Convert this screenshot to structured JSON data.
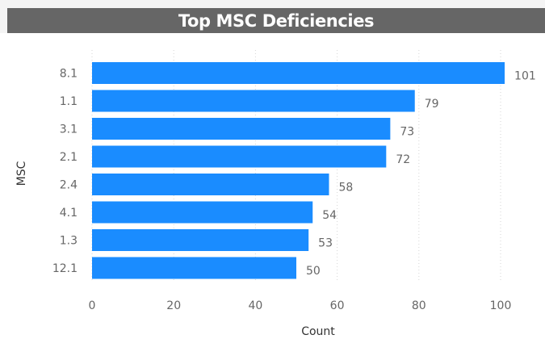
{
  "chart_data": {
    "type": "bar",
    "orientation": "horizontal",
    "title": "Top MSC Deficiencies",
    "xlabel": "Count",
    "ylabel": "MSC",
    "categories": [
      "8.1",
      "1.1",
      "3.1",
      "2.1",
      "2.4",
      "4.1",
      "1.3",
      "12.1"
    ],
    "values": [
      101,
      79,
      73,
      72,
      58,
      54,
      53,
      50
    ],
    "xticks": [
      0,
      20,
      40,
      60,
      80,
      100
    ],
    "xlim": [
      0,
      103
    ],
    "grid": true,
    "legend": "none",
    "data_labels": true
  },
  "colors": {
    "bar": "#1a8cff",
    "title_bg": "#666666",
    "title_text": "#ffffff",
    "axis_text": "#666666",
    "gridline": "#d6d6d6"
  }
}
